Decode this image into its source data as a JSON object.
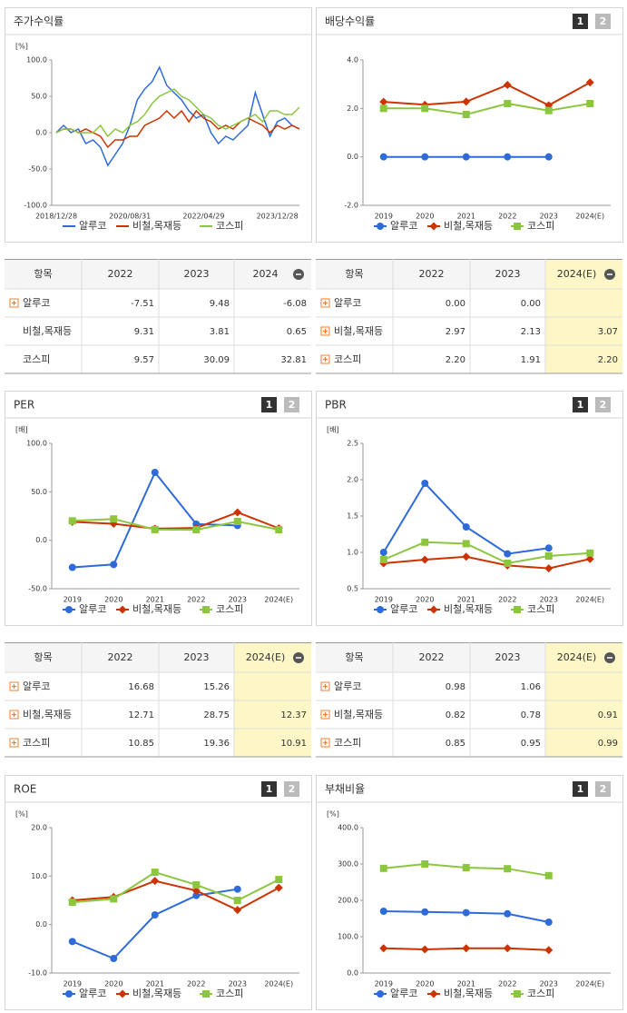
{
  "chart_data": [
    {
      "type": "line",
      "title": "주가수익률",
      "unit": "[%]",
      "categories": [
        "2018/12/28",
        null,
        null,
        null,
        null,
        null,
        null,
        null,
        null,
        null,
        "2020/08/31",
        null,
        null,
        null,
        null,
        null,
        null,
        null,
        null,
        null,
        "2022/04/29",
        null,
        null,
        null,
        null,
        null,
        null,
        null,
        null,
        null,
        "2023/12/28",
        null,
        null,
        null
      ],
      "ylim": [
        -100,
        100
      ],
      "yticks": [
        {
          "value": -100,
          "label": "-100.0"
        },
        {
          "value": -50,
          "label": "-50.0"
        },
        {
          "value": 0,
          "label": "0.0"
        },
        {
          "value": 50,
          "label": "50.0"
        },
        {
          "value": 100,
          "label": "100.0"
        }
      ],
      "series": [
        {
          "name": "알루코",
          "color": "#2e6bd9",
          "values": [
            0,
            10,
            0,
            5,
            -15,
            -10,
            -20,
            -45,
            -30,
            -15,
            10,
            45,
            60,
            70,
            90,
            65,
            55,
            45,
            30,
            20,
            25,
            0,
            -15,
            -5,
            -10,
            0,
            10,
            55,
            25,
            -5,
            15,
            20,
            10,
            5
          ]
        },
        {
          "name": "비철,목재등",
          "color": "#cc3300",
          "values": [
            0,
            5,
            5,
            0,
            5,
            0,
            -5,
            -20,
            -10,
            -10,
            -5,
            -5,
            10,
            15,
            20,
            30,
            20,
            30,
            15,
            30,
            20,
            15,
            5,
            10,
            5,
            15,
            20,
            15,
            10,
            0,
            10,
            5,
            10,
            5
          ]
        },
        {
          "name": "코스피",
          "color": "#8cc63f",
          "values": [
            0,
            5,
            5,
            0,
            0,
            0,
            10,
            -5,
            5,
            0,
            10,
            15,
            25,
            40,
            50,
            55,
            60,
            50,
            45,
            35,
            25,
            20,
            10,
            5,
            10,
            15,
            20,
            25,
            15,
            30,
            30,
            25,
            25,
            35
          ]
        }
      ]
    },
    {
      "type": "line",
      "title": "배당수익률",
      "buttons": [
        "1",
        "2"
      ],
      "categories": [
        "2019",
        "2020",
        "2021",
        "2022",
        "2023",
        "2024(E)"
      ],
      "ylim": [
        -2,
        4
      ],
      "yticks": [
        {
          "value": -2,
          "label": "-2.0"
        },
        {
          "value": 0,
          "label": "0.0"
        },
        {
          "value": 2,
          "label": "2.0"
        },
        {
          "value": 4,
          "label": "4.0"
        }
      ],
      "series": [
        {
          "name": "알루코",
          "color": "#2e6bd9",
          "marker": "circle",
          "values": [
            0,
            0,
            0,
            0,
            0,
            null
          ]
        },
        {
          "name": "비철,목재등",
          "color": "#cc3300",
          "marker": "diamond",
          "values": [
            2.27,
            2.15,
            2.28,
            2.97,
            2.13,
            3.07
          ]
        },
        {
          "name": "코스피",
          "color": "#8cc63f",
          "marker": "square",
          "values": [
            2.0,
            2.0,
            1.75,
            2.2,
            1.91,
            2.2
          ]
        }
      ]
    },
    {
      "type": "line",
      "title": "PER",
      "unit": "[배]",
      "buttons": [
        "1",
        "2"
      ],
      "categories": [
        "2019",
        "2020",
        "2021",
        "2022",
        "2023",
        "2024(E)"
      ],
      "ylim": [
        -50,
        100
      ],
      "yticks": [
        {
          "value": -50,
          "label": "-50.0"
        },
        {
          "value": 0,
          "label": "0.0"
        },
        {
          "value": 50,
          "label": "50.0"
        },
        {
          "value": 100,
          "label": "100.0"
        }
      ],
      "series": [
        {
          "name": "알루코",
          "color": "#2e6bd9",
          "marker": "circle",
          "values": [
            -28,
            -25,
            70,
            16.68,
            15.26,
            null
          ]
        },
        {
          "name": "비철,목재등",
          "color": "#cc3300",
          "marker": "diamond",
          "values": [
            19,
            17,
            12,
            12.71,
            28.75,
            12.37
          ]
        },
        {
          "name": "코스피",
          "color": "#8cc63f",
          "marker": "square",
          "values": [
            20,
            22,
            11,
            10.85,
            19.36,
            10.91
          ]
        }
      ]
    },
    {
      "type": "line",
      "title": "PBR",
      "unit": "[배]",
      "buttons": [
        "1",
        "2"
      ],
      "categories": [
        "2019",
        "2020",
        "2021",
        "2022",
        "2023",
        "2024(E)"
      ],
      "ylim": [
        0.5,
        2.5
      ],
      "yticks": [
        0.5,
        {
          "value": 1,
          "label": "1.0"
        },
        1.5,
        {
          "value": 2,
          "label": "2.0"
        },
        2.5
      ],
      "series": [
        {
          "name": "알루코",
          "color": "#2e6bd9",
          "marker": "circle",
          "values": [
            1.0,
            1.95,
            1.35,
            0.98,
            1.06,
            null
          ]
        },
        {
          "name": "비철,목재등",
          "color": "#cc3300",
          "marker": "diamond",
          "values": [
            0.85,
            0.9,
            0.94,
            0.82,
            0.78,
            0.91
          ]
        },
        {
          "name": "코스피",
          "color": "#8cc63f",
          "marker": "square",
          "values": [
            0.9,
            1.14,
            1.12,
            0.85,
            0.95,
            0.99
          ]
        }
      ]
    },
    {
      "type": "line",
      "title": "ROE",
      "unit": "[%]",
      "buttons": [
        "1",
        "2"
      ],
      "categories": [
        "2019",
        "2020",
        "2021",
        "2022",
        "2023",
        "2024(E)"
      ],
      "ylim": [
        -10,
        20
      ],
      "yticks": [
        {
          "value": -10,
          "label": "-10.0"
        },
        {
          "value": 0,
          "label": "0.0"
        },
        {
          "value": 10,
          "label": "10.0"
        },
        {
          "value": 20,
          "label": "20.0"
        }
      ],
      "series": [
        {
          "name": "알루코",
          "color": "#2e6bd9",
          "marker": "circle",
          "values": [
            -3.5,
            -7,
            2,
            6,
            7.3,
            null
          ]
        },
        {
          "name": "비철,목재등",
          "color": "#cc3300",
          "marker": "diamond",
          "values": [
            5,
            5.7,
            9,
            7,
            3,
            7.6
          ]
        },
        {
          "name": "코스피",
          "color": "#8cc63f",
          "marker": "square",
          "values": [
            4.6,
            5.3,
            10.8,
            8.2,
            5,
            9.3
          ]
        }
      ]
    },
    {
      "type": "line",
      "title": "부채비율",
      "unit": "[%]",
      "buttons": [
        "1",
        "2"
      ],
      "categories": [
        "2019",
        "2020",
        "2021",
        "2022",
        "2023",
        "2024(E)"
      ],
      "ylim": [
        0,
        400
      ],
      "yticks": [
        {
          "value": 0,
          "label": "0.0"
        },
        {
          "value": 100,
          "label": "100.0"
        },
        {
          "value": 200,
          "label": "200.0"
        },
        {
          "value": 300,
          "label": "300.0"
        },
        {
          "value": 400,
          "label": "400.0"
        }
      ],
      "series": [
        {
          "name": "알루코",
          "color": "#2e6bd9",
          "marker": "circle",
          "values": [
            170,
            168,
            166,
            163,
            140,
            null
          ]
        },
        {
          "name": "비철,목재등",
          "color": "#cc3300",
          "marker": "diamond",
          "values": [
            68,
            65,
            68,
            68,
            63,
            null
          ]
        },
        {
          "name": "코스피",
          "color": "#8cc63f",
          "marker": "square",
          "values": [
            288,
            300,
            290,
            287,
            268,
            null
          ]
        }
      ]
    }
  ],
  "tables": [
    {
      "header": [
        "항목",
        "2022",
        "2023",
        "2024"
      ],
      "rows": [
        {
          "name": "알루코",
          "icon": true,
          "values": [
            "-7.51",
            "9.48",
            "-6.08"
          ]
        },
        {
          "name": "비철,목재등",
          "icon": false,
          "values": [
            "9.31",
            "3.81",
            "0.65"
          ]
        },
        {
          "name": "코스피",
          "icon": false,
          "values": [
            "9.57",
            "30.09",
            "32.81"
          ]
        }
      ]
    },
    {
      "header": [
        "항목",
        "2022",
        "2023",
        "2024(E)"
      ],
      "highlight_last": true,
      "rows": [
        {
          "name": "알루코",
          "icon": true,
          "values": [
            "0.00",
            "0.00",
            null
          ]
        },
        {
          "name": "비철,목재등",
          "icon": true,
          "values": [
            "2.97",
            "2.13",
            "3.07"
          ]
        },
        {
          "name": "코스피",
          "icon": true,
          "values": [
            "2.20",
            "1.91",
            "2.20"
          ]
        }
      ]
    },
    {
      "header": [
        "항목",
        "2022",
        "2023",
        "2024(E)"
      ],
      "highlight_last": true,
      "rows": [
        {
          "name": "알루코",
          "icon": true,
          "values": [
            "16.68",
            "15.26",
            null
          ]
        },
        {
          "name": "비철,목재등",
          "icon": true,
          "values": [
            "12.71",
            "28.75",
            "12.37"
          ]
        },
        {
          "name": "코스피",
          "icon": true,
          "values": [
            "10.85",
            "19.36",
            "10.91"
          ]
        }
      ]
    },
    {
      "header": [
        "항목",
        "2022",
        "2023",
        "2024(E)"
      ],
      "highlight_last": true,
      "rows": [
        {
          "name": "알루코",
          "icon": true,
          "values": [
            "0.98",
            "1.06",
            null
          ]
        },
        {
          "name": "비철,목재등",
          "icon": true,
          "values": [
            "0.82",
            "0.78",
            "0.91"
          ]
        },
        {
          "name": "코스피",
          "icon": true,
          "values": [
            "0.85",
            "0.95",
            "0.99"
          ]
        }
      ]
    }
  ]
}
